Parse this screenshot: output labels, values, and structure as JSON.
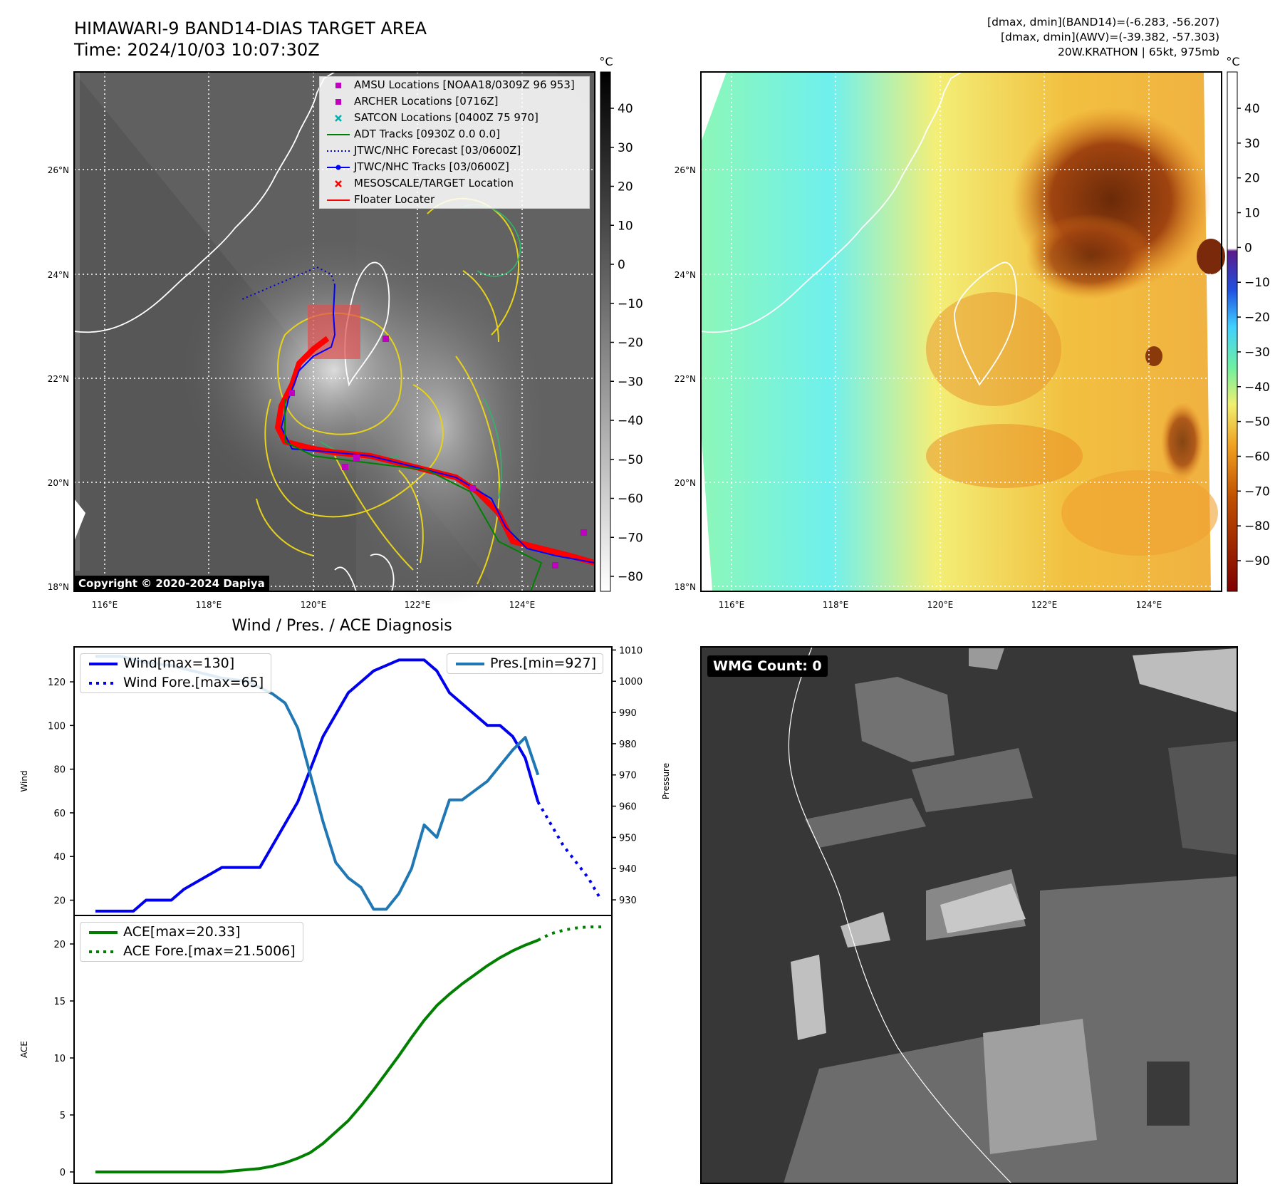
{
  "header": {
    "title_line1": "HIMAWARI-9 BAND14-DIAS TARGET AREA",
    "title_line2": "Time: 2024/10/03 10:07:30Z",
    "info_line1": "[dmax, dmin](BAND14)=(-6.283, -56.207)",
    "info_line2": "[dmax, dmin](AWV)=(-39.382, -57.303)",
    "info_line3": "20W.KRATHON | 65kt, 975mb"
  },
  "map_axes": {
    "lat_labels": [
      "26°N",
      "24°N",
      "22°N",
      "20°N",
      "18°N"
    ],
    "lon_labels": [
      "116°E",
      "118°E",
      "120°E",
      "122°E",
      "124°E"
    ]
  },
  "colorbar_ir": {
    "unit": "°C",
    "ticks": [
      "40",
      "30",
      "20",
      "10",
      "0",
      "−10",
      "−20",
      "−30",
      "−40",
      "−50",
      "−60",
      "−70",
      "−80"
    ]
  },
  "colorbar_color": {
    "unit": "°C",
    "ticks": [
      "40",
      "30",
      "20",
      "10",
      "0",
      "−10",
      "−20",
      "−30",
      "−40",
      "−50",
      "−60",
      "−70",
      "−80",
      "−90"
    ]
  },
  "map_legend": [
    {
      "label": "AMSU Locations [NOAA18/0309Z 96 953]",
      "symbol": "square",
      "color": "#c000c0"
    },
    {
      "label": "ARCHER Locations [0716Z]",
      "symbol": "square",
      "color": "#c000c0"
    },
    {
      "label": "SATCON Locations [0400Z 75 970]",
      "symbol": "x",
      "color": "#00b0b0"
    },
    {
      "label": "ADT Tracks [0930Z 0.0 0.0]",
      "symbol": "line",
      "color": "#008000"
    },
    {
      "label": "JTWC/NHC Forecast [03/0600Z]",
      "symbol": "dotted",
      "color": "#0000cc"
    },
    {
      "label": "JTWC/NHC Tracks [03/0600Z]",
      "symbol": "line-dot",
      "color": "#0000ff"
    },
    {
      "label": "MESOSCALE/TARGET Location",
      "symbol": "x",
      "color": "#ff0000"
    },
    {
      "label": "Floater Locater",
      "symbol": "line",
      "color": "#ff0000"
    }
  ],
  "copyright": "Copyright © 2020-2024 Dapiya",
  "wmg_label": "WMG Count: 0",
  "colors": {
    "wind": "#0000ee",
    "pressure": "#1f77b4",
    "ace": "#007f00"
  },
  "chart_data": [
    {
      "type": "line",
      "title": "Wind / Pres. / ACE Diagnosis",
      "ylabel": "Wind",
      "ylim": [
        13,
        136
      ],
      "y2label": "Pressure",
      "y2lim": [
        925,
        1011
      ],
      "xlim": [
        0,
        40
      ],
      "yticks": [
        20,
        40,
        60,
        80,
        100,
        120
      ],
      "y2ticks": [
        930,
        940,
        950,
        960,
        970,
        980,
        990,
        1000,
        1010
      ],
      "series": [
        {
          "name": "Wind[max=130]",
          "axis": "left",
          "style": "solid",
          "x": [
            0,
            3,
            4,
            6,
            7,
            10,
            13,
            16,
            18,
            20,
            22,
            24,
            26,
            27,
            28,
            30,
            31,
            32,
            33,
            34,
            35
          ],
          "values": [
            15,
            15,
            20,
            20,
            25,
            35,
            35,
            65,
            95,
            115,
            125,
            130,
            130,
            125,
            115,
            105,
            100,
            100,
            95,
            85,
            65
          ]
        },
        {
          "name": "Wind Fore.[max=65]",
          "axis": "left",
          "style": "dotted",
          "x": [
            35,
            37,
            39,
            40
          ],
          "values": [
            65,
            45,
            30,
            20
          ]
        },
        {
          "name": "Pres.[min=927]",
          "axis": "right",
          "style": "solid",
          "x": [
            0,
            2,
            4,
            6,
            8,
            10,
            12,
            14,
            15,
            16,
            17,
            18,
            19,
            20,
            21,
            22,
            23,
            24,
            25,
            26,
            27,
            28,
            29,
            30,
            31,
            32,
            33,
            34,
            35
          ],
          "values": [
            1008,
            1008,
            1006,
            1005,
            1003,
            1001,
            1000,
            996,
            993,
            985,
            970,
            955,
            942,
            937,
            934,
            927,
            927,
            932,
            940,
            954,
            950,
            962,
            962,
            965,
            968,
            973,
            978,
            982,
            970
          ]
        }
      ]
    },
    {
      "type": "line",
      "ylabel": "ACE",
      "ylim": [
        -1,
        22.5
      ],
      "xlim": [
        0,
        40
      ],
      "yticks": [
        0,
        5,
        10,
        15,
        20
      ],
      "series": [
        {
          "name": "ACE[max=20.33]",
          "style": "solid",
          "x": [
            0,
            4,
            8,
            10,
            12,
            13,
            14,
            15,
            16,
            17,
            18,
            19,
            20,
            21,
            22,
            23,
            24,
            25,
            26,
            27,
            28,
            29,
            30,
            31,
            32,
            33,
            34,
            35
          ],
          "values": [
            0,
            0,
            0,
            0,
            0.2,
            0.3,
            0.5,
            0.8,
            1.2,
            1.7,
            2.5,
            3.5,
            4.5,
            5.8,
            7.2,
            8.7,
            10.2,
            11.8,
            13.3,
            14.6,
            15.6,
            16.5,
            17.3,
            18.1,
            18.8,
            19.4,
            19.9,
            20.33
          ]
        },
        {
          "name": "ACE Fore.[max=21.5006]",
          "style": "dotted",
          "x": [
            35,
            36,
            37,
            38,
            39,
            40
          ],
          "values": [
            20.33,
            20.9,
            21.2,
            21.4,
            21.5,
            21.5006
          ]
        }
      ]
    }
  ]
}
